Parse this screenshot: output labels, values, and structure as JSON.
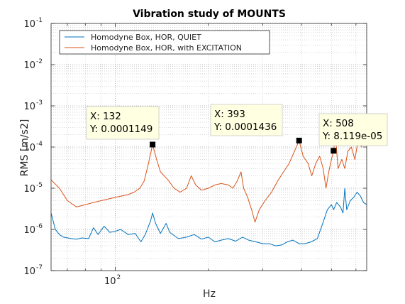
{
  "chart_data": {
    "type": "line",
    "title": "Vibration study of MOUNTS",
    "xlabel": "Hz",
    "ylabel": "RMS [m/s2]",
    "xscale": "log",
    "yscale": "log",
    "xlim": [
      62,
      650
    ],
    "ylim": [
      1e-07,
      0.1
    ],
    "grid": true,
    "legend_position": "top",
    "x_ticks": [
      {
        "value": 100,
        "base": "10",
        "exp": "2"
      }
    ],
    "y_ticks": [
      {
        "value": 1e-07,
        "base": "10",
        "exp": "-7"
      },
      {
        "value": 1e-06,
        "base": "10",
        "exp": "-6"
      },
      {
        "value": 1e-05,
        "base": "10",
        "exp": "-5"
      },
      {
        "value": 0.0001,
        "base": "10",
        "exp": "-4"
      },
      {
        "value": 0.001,
        "base": "10",
        "exp": "-3"
      },
      {
        "value": 0.01,
        "base": "10",
        "exp": "-2"
      },
      {
        "value": 0.1,
        "base": "10",
        "exp": "-1"
      }
    ],
    "series": [
      {
        "name": "Homodyne Box, HOR, QUIET",
        "color": "#0072BD",
        "points": [
          [
            62,
            2.5e-06
          ],
          [
            64,
            1e-06
          ],
          [
            66,
            7.5e-07
          ],
          [
            68,
            6.5e-07
          ],
          [
            72,
            6e-07
          ],
          [
            75,
            5.8e-07
          ],
          [
            78,
            6.2e-07
          ],
          [
            82,
            6e-07
          ],
          [
            85,
            1.1e-06
          ],
          [
            88,
            7.5e-07
          ],
          [
            92,
            1.2e-06
          ],
          [
            96,
            8.5e-07
          ],
          [
            100,
            9e-07
          ],
          [
            104,
            1e-06
          ],
          [
            110,
            7.5e-07
          ],
          [
            116,
            8e-07
          ],
          [
            121,
            5e-07
          ],
          [
            125,
            7.5e-07
          ],
          [
            130,
            1.6e-06
          ],
          [
            132,
            2.5e-06
          ],
          [
            135,
            1.4e-06
          ],
          [
            140,
            8e-07
          ],
          [
            146,
            1.4e-06
          ],
          [
            150,
            8.5e-07
          ],
          [
            160,
            6e-07
          ],
          [
            170,
            6.5e-07
          ],
          [
            180,
            7.5e-07
          ],
          [
            190,
            5.8e-07
          ],
          [
            200,
            6.5e-07
          ],
          [
            210,
            5e-07
          ],
          [
            220,
            5.5e-07
          ],
          [
            232,
            6e-07
          ],
          [
            245,
            5.2e-07
          ],
          [
            258,
            6.5e-07
          ],
          [
            270,
            5.5e-07
          ],
          [
            285,
            5e-07
          ],
          [
            300,
            4.5e-07
          ],
          [
            315,
            4.5e-07
          ],
          [
            330,
            4e-07
          ],
          [
            345,
            4.2e-07
          ],
          [
            360,
            5e-07
          ],
          [
            375,
            5.5e-07
          ],
          [
            393,
            4.5e-07
          ],
          [
            410,
            4.5e-07
          ],
          [
            430,
            5e-07
          ],
          [
            450,
            6e-07
          ],
          [
            470,
            1.5e-06
          ],
          [
            485,
            3e-06
          ],
          [
            500,
            4e-06
          ],
          [
            508,
            3e-06
          ],
          [
            520,
            4.5e-06
          ],
          [
            535,
            3.5e-06
          ],
          [
            545,
            2.5e-06
          ],
          [
            552,
            1e-05
          ],
          [
            560,
            3e-06
          ],
          [
            575,
            5e-06
          ],
          [
            590,
            6e-06
          ],
          [
            605,
            8e-06
          ],
          [
            620,
            6.5e-06
          ],
          [
            635,
            4.5e-06
          ],
          [
            650,
            4e-06
          ]
        ]
      },
      {
        "name": "Homodyne Box, HOR, with EXCITATION",
        "color": "#D95319",
        "points": [
          [
            62,
            1.6e-05
          ],
          [
            66,
            1e-05
          ],
          [
            70,
            5e-06
          ],
          [
            75,
            3.5e-06
          ],
          [
            80,
            4e-06
          ],
          [
            85,
            4.5e-06
          ],
          [
            90,
            5e-06
          ],
          [
            95,
            5.5e-06
          ],
          [
            100,
            6e-06
          ],
          [
            105,
            6.5e-06
          ],
          [
            110,
            7e-06
          ],
          [
            115,
            8e-06
          ],
          [
            120,
            1e-05
          ],
          [
            124,
            1.5e-05
          ],
          [
            128,
            4e-05
          ],
          [
            132,
            0.0001149
          ],
          [
            136,
            5e-05
          ],
          [
            140,
            2.5e-05
          ],
          [
            148,
            1.6e-05
          ],
          [
            155,
            1e-05
          ],
          [
            162,
            8e-06
          ],
          [
            170,
            1e-05
          ],
          [
            176,
            2e-05
          ],
          [
            182,
            1.2e-05
          ],
          [
            190,
            9e-06
          ],
          [
            200,
            1e-05
          ],
          [
            210,
            1.2e-05
          ],
          [
            220,
            1.3e-05
          ],
          [
            232,
            1.2e-05
          ],
          [
            240,
            1e-05
          ],
          [
            248,
            1.5e-05
          ],
          [
            255,
            2.5e-05
          ],
          [
            260,
            1e-05
          ],
          [
            268,
            6e-06
          ],
          [
            276,
            3e-06
          ],
          [
            283,
            1.5e-06
          ],
          [
            292,
            3e-06
          ],
          [
            305,
            5e-06
          ],
          [
            320,
            8e-06
          ],
          [
            335,
            1.5e-05
          ],
          [
            350,
            2.5e-05
          ],
          [
            365,
            4e-05
          ],
          [
            380,
            8e-05
          ],
          [
            393,
            0.0001436
          ],
          [
            405,
            6e-05
          ],
          [
            420,
            4e-05
          ],
          [
            432,
            2e-05
          ],
          [
            445,
            4e-05
          ],
          [
            458,
            6e-05
          ],
          [
            470,
            3e-05
          ],
          [
            480,
            1e-05
          ],
          [
            490,
            2.5e-05
          ],
          [
            500,
            5e-05
          ],
          [
            508,
            8.119e-05
          ],
          [
            515,
            0.0002
          ],
          [
            525,
            3e-05
          ],
          [
            540,
            5e-05
          ],
          [
            552,
            3e-05
          ],
          [
            565,
            8e-05
          ],
          [
            580,
            0.0001
          ],
          [
            595,
            5e-05
          ],
          [
            610,
            0.00015
          ],
          [
            625,
            0.0001
          ],
          [
            640,
            0.0002
          ],
          [
            650,
            0.00015
          ]
        ]
      }
    ],
    "datatips": [
      {
        "x": 132,
        "y": 0.0001149,
        "x_label": "X: 132",
        "y_label": "Y: 0.0001149"
      },
      {
        "x": 393,
        "y": 0.0001436,
        "x_label": "X: 393",
        "y_label": "Y: 0.0001436"
      },
      {
        "x": 508,
        "y": 8.119e-05,
        "x_label": "X: 508",
        "y_label": "Y: 8.119e-05"
      }
    ]
  }
}
